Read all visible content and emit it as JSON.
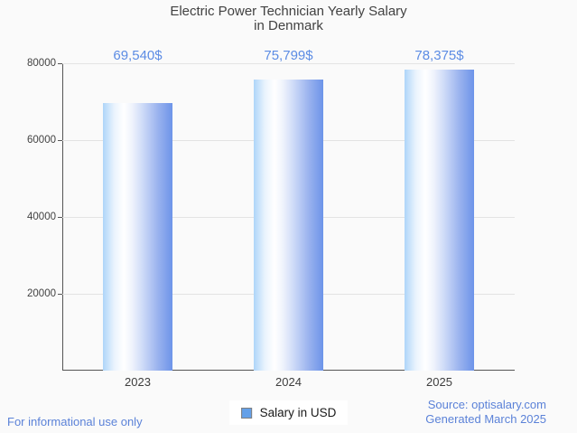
{
  "page": {
    "background": "#fafafa"
  },
  "chart_data": {
    "type": "bar",
    "title": "Electric Power Technician Yearly Salary\nin Denmark",
    "categories": [
      "2023",
      "2024",
      "2025"
    ],
    "values": [
      69540,
      75799,
      78375
    ],
    "value_labels": [
      "69,540$",
      "75,799$",
      "78,375$"
    ],
    "series": [
      {
        "name": "Salary in USD",
        "values": [
          69540,
          75799,
          78375
        ]
      }
    ],
    "xlabel": "",
    "ylabel": "",
    "ylim": [
      0,
      80000
    ],
    "yticks": [
      20000,
      40000,
      60000,
      80000
    ],
    "ytick_labels": [
      "20000",
      "40000",
      "60000",
      "80000"
    ],
    "grid": "horizontal",
    "legend_position": "bottom-center",
    "colors": {
      "bar_gradient_left": "#aed5f9",
      "bar_gradient_middle": "#ffffff",
      "bar_gradient_right": "#6d94e9",
      "value_label": "#5c8ce4",
      "axis": "#555555",
      "gridline": "#e3e3e3",
      "title": "#424242"
    }
  },
  "legend": {
    "label": "Salary in USD",
    "swatch_fill": "#64a0e8",
    "swatch_border": "#7f7f7f"
  },
  "footer": {
    "left_note": "For informational use only",
    "source": "Source: optisalary.com",
    "generated": "Generated March 2025",
    "link_color": "#5b82d8"
  }
}
